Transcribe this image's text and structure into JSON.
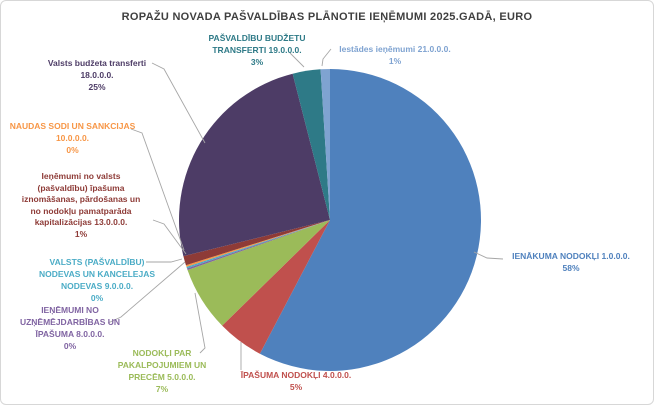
{
  "chart_data": {
    "type": "pie",
    "title": "ROPAŽU NOVADA PAŠVALDĪBAS PLĀNOTIE IEŅĒMUMI 2025.GADĀ, EURO",
    "unit": "EURO",
    "legend_position": "none",
    "label_style": "outside callouts with gray leader lines, text colored like slice",
    "slices": [
      {
        "id": "1-0-0-0",
        "label": "IENĀKUMA NODOKĻI",
        "code": "1.0.0.0.",
        "pct": 58,
        "color": "#4F81BD",
        "callout": "IENĀKUMA NODOKĻI 1.0.0.0.\n58%"
      },
      {
        "id": "4-0-0-0",
        "label": "ĪPAŠUMA NODOKĻI",
        "code": "4.0.0.0.",
        "pct": 5,
        "color": "#C0504D",
        "callout": "ĪPAŠUMA NODOKĻI 4.0.0.0.\n5%"
      },
      {
        "id": "5-0-0-0",
        "label": "NODOKĻI PAR PAKALPOJUMIEM UN PRECĒM",
        "code": "5.0.0.0.",
        "pct": 7,
        "color": "#9BBB59",
        "callout": "NODOKĻI PAR\nPAKALPOJUMIEM UN\nPRECĒM 5.0.0.0.\n7%"
      },
      {
        "id": "8-0-0-0",
        "label": "IEŅĒMUMI NO UZŅĒMĒJDARBĪBAS UN ĪPAŠUMA",
        "code": "8.0.0.0.",
        "pct": 0,
        "color": "#8064A2",
        "callout": "IEŅĒMUMI NO\nUZŅĒMĒJDARBĪBAS UN\nĪPAŠUMA 8.0.0.0.\n0%"
      },
      {
        "id": "9-0-0-0",
        "label": "VALSTS (PAŠVALDĪBU) NODEVAS UN KANCELEJAS NODEVAS",
        "code": "9.0.0.0.",
        "pct": 0,
        "color": "#4BACC6",
        "callout": "VALSTS (PAŠVALDĪBU)\nNODEVAS UN KANCELEJAS\nNODEVAS 9.0.0.0.\n0%"
      },
      {
        "id": "10-0-0-0",
        "label": "NAUDAS SODI UN SANKCIJAS",
        "code": "10.0.0.0.",
        "pct": 0,
        "color": "#F79646",
        "callout": "NAUDAS SODI UN SANKCIJAS\n10.0.0.0.\n0%"
      },
      {
        "id": "13-0-0-0",
        "label": "Ieņēmumi no valsts (pašvaldību) īpašuma iznomāšanas, pārdošanas un no nodokļu pamatparāda kapitalizācijas",
        "code": "13.0.0.0.",
        "pct": 1,
        "color": "#8E3B37",
        "callout": "Ieņēmumi no valsts\n(pašvaldību) īpašuma\niznomāšanas, pārdošanas un\nno nodokļu pamatparāda\nkapitalizācijas 13.0.0.0.\n1%"
      },
      {
        "id": "18-0-0-0",
        "label": "Valsts budžeta transferti",
        "code": "18.0.0.0.",
        "pct": 25,
        "color": "#4D3C66",
        "callout": "Valsts budžeta transferti\n18.0.0.0.\n25%"
      },
      {
        "id": "19-0-0-0",
        "label": "PAŠVALDĪBU BUDŽETU TRANSFERTI",
        "code": "19.0.0.0.",
        "pct": 3,
        "color": "#2E7A87",
        "callout": "PAŠVALDĪBU BUDŽETU\nTRANSFERTI 19.0.0.0.\n3%"
      },
      {
        "id": "21-0-0-0",
        "label": "Iestādes ieņēmumi",
        "code": "21.0.0.0.",
        "pct": 1,
        "color": "#7FA3D1",
        "callout": "Iestādes ieņēmumi  21.0.0.0.\n1%"
      }
    ]
  }
}
